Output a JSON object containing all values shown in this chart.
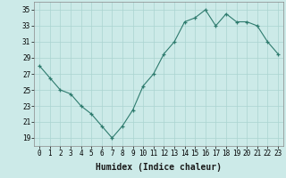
{
  "x": [
    0,
    1,
    2,
    3,
    4,
    5,
    6,
    7,
    8,
    9,
    10,
    11,
    12,
    13,
    14,
    15,
    16,
    17,
    18,
    19,
    20,
    21,
    22,
    23
  ],
  "y": [
    28.0,
    26.5,
    25.0,
    24.5,
    23.0,
    22.0,
    20.5,
    19.0,
    20.5,
    22.5,
    25.5,
    27.0,
    29.5,
    31.0,
    33.5,
    34.0,
    35.0,
    33.0,
    34.5,
    33.5,
    33.5,
    33.0,
    31.0,
    29.5
  ],
  "line_color": "#2e7b6e",
  "marker_color": "#2e7b6e",
  "bg_color": "#cceae8",
  "grid_color": "#aad4d0",
  "xlabel": "Humidex (Indice chaleur)",
  "xlim": [
    -0.5,
    23.5
  ],
  "ylim": [
    18,
    36
  ],
  "yticks": [
    19,
    21,
    23,
    25,
    27,
    29,
    31,
    33,
    35
  ],
  "fontsize_ticks": 5.5,
  "fontsize_xlabel": 7
}
